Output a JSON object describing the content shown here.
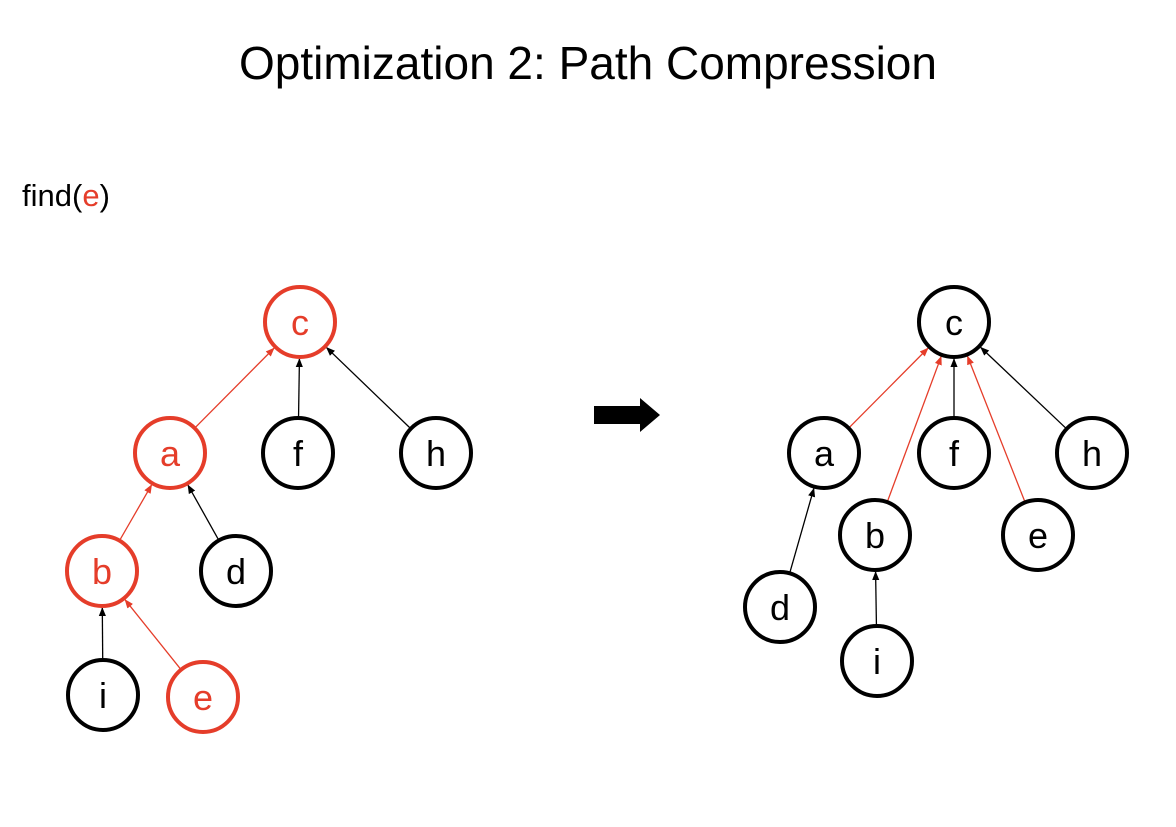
{
  "title": "Optimization 2: Path Compression",
  "caption": {
    "prefix": "find(",
    "arg": "e",
    "suffix": ")"
  },
  "colors": {
    "highlight": "#e53d2a",
    "normal": "#000000"
  },
  "before_tree": {
    "nodes": [
      {
        "id": "c",
        "label": "c",
        "highlight": true
      },
      {
        "id": "a",
        "label": "a",
        "highlight": true
      },
      {
        "id": "f",
        "label": "f",
        "highlight": false
      },
      {
        "id": "h",
        "label": "h",
        "highlight": false
      },
      {
        "id": "b",
        "label": "b",
        "highlight": true
      },
      {
        "id": "d",
        "label": "d",
        "highlight": false
      },
      {
        "id": "i",
        "label": "i",
        "highlight": false
      },
      {
        "id": "e",
        "label": "e",
        "highlight": true
      }
    ],
    "edges": [
      {
        "from": "a",
        "to": "c",
        "highlight": true
      },
      {
        "from": "f",
        "to": "c",
        "highlight": false
      },
      {
        "from": "h",
        "to": "c",
        "highlight": false
      },
      {
        "from": "b",
        "to": "a",
        "highlight": true
      },
      {
        "from": "d",
        "to": "a",
        "highlight": false
      },
      {
        "from": "i",
        "to": "b",
        "highlight": false
      },
      {
        "from": "e",
        "to": "b",
        "highlight": true
      }
    ]
  },
  "after_tree": {
    "nodes": [
      {
        "id": "c",
        "label": "c",
        "highlight": false
      },
      {
        "id": "a",
        "label": "a",
        "highlight": false
      },
      {
        "id": "f",
        "label": "f",
        "highlight": false
      },
      {
        "id": "h",
        "label": "h",
        "highlight": false
      },
      {
        "id": "b",
        "label": "b",
        "highlight": false
      },
      {
        "id": "e",
        "label": "e",
        "highlight": false
      },
      {
        "id": "d",
        "label": "d",
        "highlight": false
      },
      {
        "id": "i",
        "label": "i",
        "highlight": false
      }
    ],
    "edges": [
      {
        "from": "a",
        "to": "c",
        "highlight": true
      },
      {
        "from": "b",
        "to": "c",
        "highlight": true
      },
      {
        "from": "f",
        "to": "c",
        "highlight": false
      },
      {
        "from": "e",
        "to": "c",
        "highlight": true
      },
      {
        "from": "h",
        "to": "c",
        "highlight": false
      },
      {
        "from": "d",
        "to": "a",
        "highlight": false
      },
      {
        "from": "i",
        "to": "b",
        "highlight": false
      }
    ]
  }
}
